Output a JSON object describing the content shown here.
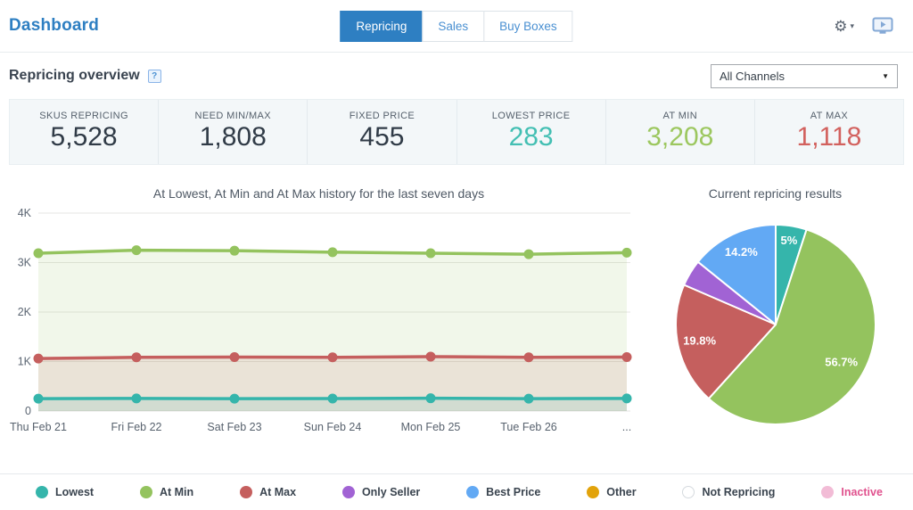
{
  "header": {
    "title": "Dashboard",
    "tabs": [
      {
        "label": "Repricing",
        "active": true
      },
      {
        "label": "Sales",
        "active": false
      },
      {
        "label": "Buy Boxes",
        "active": false
      }
    ],
    "gear_glyph": "⚙",
    "gear_caret": "▾"
  },
  "overview": {
    "title": "Repricing overview",
    "help_glyph": "?",
    "channel_select": {
      "value": "All Channels",
      "caret": "▼"
    }
  },
  "stats": [
    {
      "label": "SKUS REPRICING",
      "value": "5,528",
      "color": "#303b47"
    },
    {
      "label": "NEED MIN/MAX",
      "value": "1,808",
      "color": "#303b47"
    },
    {
      "label": "FIXED PRICE",
      "value": "455",
      "color": "#303b47"
    },
    {
      "label": "LOWEST PRICE",
      "value": "283",
      "color": "#43bfb3"
    },
    {
      "label": "AT MIN",
      "value": "3,208",
      "color": "#9cc75f"
    },
    {
      "label": "AT MAX",
      "value": "1,118",
      "color": "#d2615e"
    }
  ],
  "chart_data": [
    {
      "type": "line",
      "title": "At Lowest, At Min and At Max history for the last seven days",
      "categories": [
        "Thu Feb 21",
        "Fri Feb 22",
        "Sat Feb 23",
        "Sun Feb 24",
        "Mon Feb 25",
        "Tue Feb 26",
        "..."
      ],
      "series": [
        {
          "name": "At Min",
          "color": "#94c35e",
          "values": [
            3190,
            3250,
            3240,
            3210,
            3190,
            3170,
            3200
          ]
        },
        {
          "name": "At Max",
          "color": "#c55f5e",
          "values": [
            1060,
            1085,
            1090,
            1085,
            1100,
            1085,
            1090
          ]
        },
        {
          "name": "Lowest",
          "color": "#35b5ab",
          "values": [
            250,
            255,
            250,
            252,
            258,
            250,
            255
          ]
        }
      ],
      "ylim": [
        0,
        4000
      ],
      "yticks": [
        {
          "value": 0,
          "label": "0"
        },
        {
          "value": 1000,
          "label": "1K"
        },
        {
          "value": 2000,
          "label": "2K"
        },
        {
          "value": 3000,
          "label": "3K"
        },
        {
          "value": 4000,
          "label": "4K"
        }
      ],
      "grid": true,
      "area_opacity": 0.13,
      "legend_position": "bottom"
    },
    {
      "type": "pie",
      "title": "Current repricing results",
      "slices": [
        {
          "name": "Lowest",
          "pct": 5,
          "color": "#35b5ab",
          "label": "5%",
          "label_r": 0.85
        },
        {
          "name": "At Min",
          "pct": 56.7,
          "color": "#94c35e",
          "label": "56.7%",
          "label_r": 0.76
        },
        {
          "name": "At Max",
          "pct": 19.8,
          "color": "#c55f5e",
          "label": "19.8%",
          "label_r": 0.78
        },
        {
          "name": "Only Seller",
          "pct": 4.3,
          "color": "#a163d4",
          "label": "",
          "label_r": 0.78
        },
        {
          "name": "Best Price",
          "pct": 14.2,
          "color": "#62a9f4",
          "label": "14.2%",
          "label_r": 0.8
        }
      ]
    }
  ],
  "legend": [
    {
      "label": "Lowest",
      "color": "#35b5ab"
    },
    {
      "label": "At Min",
      "color": "#94c35e"
    },
    {
      "label": "At Max",
      "color": "#c55f5e"
    },
    {
      "label": "Only Seller",
      "color": "#a163d4"
    },
    {
      "label": "Best Price",
      "color": "#62a9f4"
    },
    {
      "label": "Other",
      "color": "#e2a30b"
    },
    {
      "label": "Not Repricing",
      "color": "#ffffff",
      "border": "#d5dade"
    },
    {
      "label": "Inactive",
      "color": "#f2bcd6",
      "label_color": "#e0528e"
    }
  ]
}
